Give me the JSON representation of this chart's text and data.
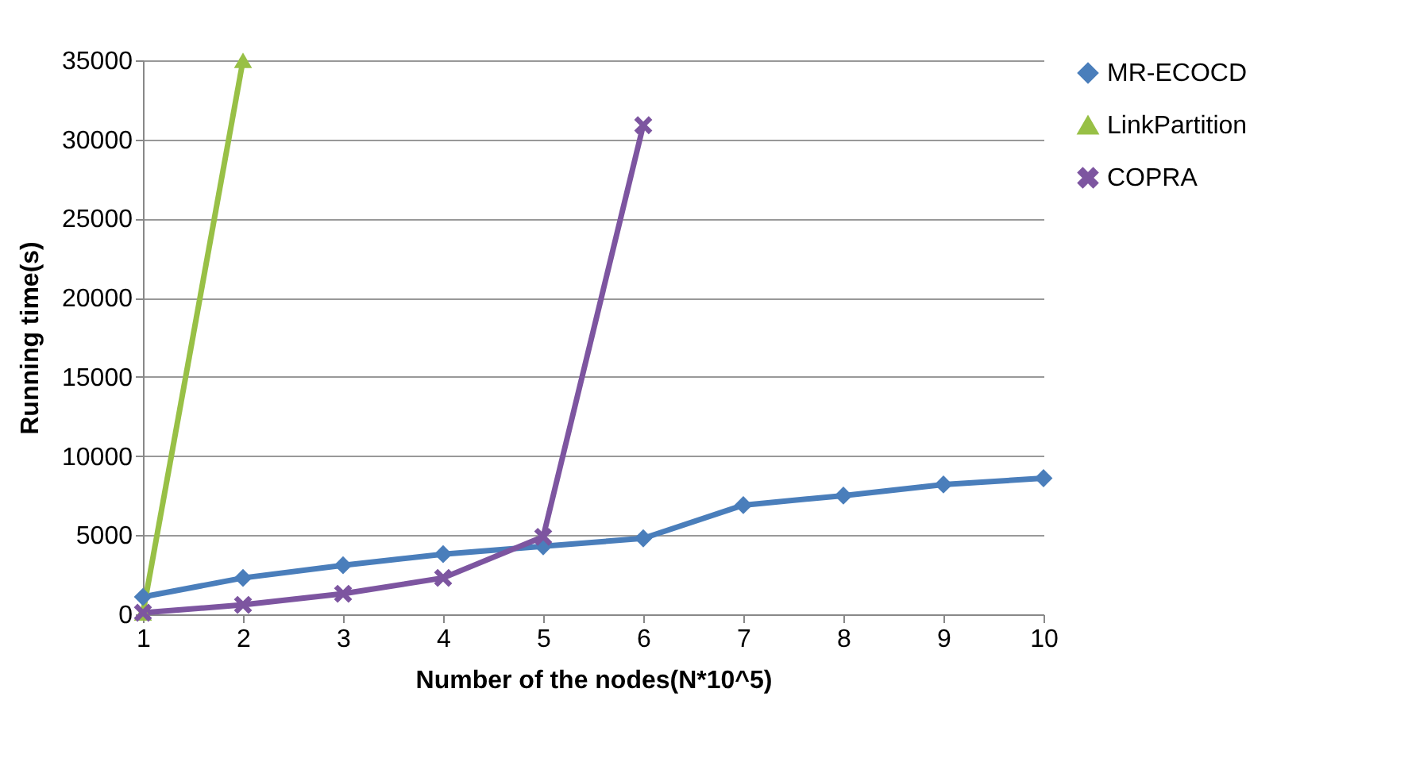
{
  "chart_data": {
    "type": "line",
    "xlabel": "Number of the nodes(N*10^5)",
    "ylabel": "Running time(s)",
    "categories": [
      "1",
      "2",
      "3",
      "4",
      "5",
      "6",
      "7",
      "8",
      "9",
      "10"
    ],
    "series": [
      {
        "name": "MR-ECOCD",
        "color": "#4a7ebb",
        "marker": "diamond",
        "values": [
          1100,
          2300,
          3100,
          3800,
          4300,
          4800,
          6900,
          7500,
          8200,
          8600
        ]
      },
      {
        "name": "LinkPartition",
        "color": "#98c046",
        "marker": "triangle",
        "values": [
          100,
          35000,
          null,
          null,
          null,
          null,
          null,
          null,
          null,
          null
        ]
      },
      {
        "name": "COPRA",
        "color": "#7d55a0",
        "marker": "cross",
        "values": [
          100,
          600,
          1300,
          2300,
          4900,
          30900,
          null,
          null,
          null,
          null
        ]
      }
    ],
    "ylim": [
      0,
      35000
    ],
    "yticks": [
      0,
      5000,
      10000,
      15000,
      20000,
      25000,
      30000,
      35000
    ],
    "grid": "y",
    "legend": "right",
    "line_style": "solid"
  }
}
